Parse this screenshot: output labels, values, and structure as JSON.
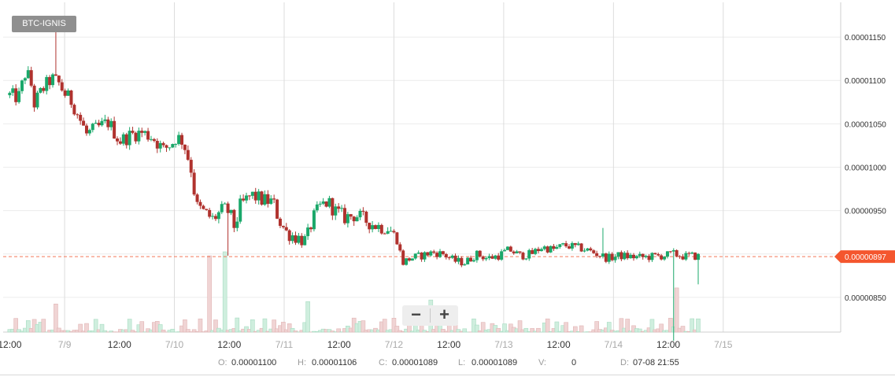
{
  "pair_label": "BTC-IGNIS",
  "zoom": {
    "minus": "−",
    "plus": "+"
  },
  "ohlc": {
    "open_key": "O:",
    "open": "0.00001100",
    "high_key": "H:",
    "high": "0.00001106",
    "close_key": "C:",
    "close": "0.00001089",
    "low_key": "L:",
    "low": "0.00001089",
    "vol_key": "V:",
    "vol": "0",
    "date_key": "D:",
    "date": "07-08 21:55"
  },
  "colors": {
    "up": "#1aa86a",
    "down": "#b0322e",
    "price_line": "#f4795a",
    "grid": "#ececec"
  },
  "chart_data": {
    "type": "candlestick",
    "pair": "BTC-IGNIS",
    "current_price": 8.97e-06,
    "current_price_label": "0.00000897",
    "ylim": [
      8.1e-06,
      1.19e-05
    ],
    "y_ticks": [
      {
        "v": 1.15e-05,
        "label": "0.00001150"
      },
      {
        "v": 1.1e-05,
        "label": "0.00001100"
      },
      {
        "v": 1.05e-05,
        "label": "0.00001050"
      },
      {
        "v": 1e-05,
        "label": "0.00001000"
      },
      {
        "v": 9.5e-06,
        "label": "0.00000950"
      },
      {
        "v": 9e-06,
        "label": "0.00000900"
      },
      {
        "v": 8.5e-06,
        "label": "0.00000850"
      }
    ],
    "x_range": [
      -0.06,
      7.57
    ],
    "x_ticks": [
      {
        "x": 0.0,
        "label": "12:00",
        "grid": false
      },
      {
        "x": 0.5,
        "label": "7/9",
        "grid": true
      },
      {
        "x": 1.0,
        "label": "12:00",
        "grid": false
      },
      {
        "x": 1.5,
        "label": "7/10",
        "grid": true
      },
      {
        "x": 2.0,
        "label": "12:00",
        "grid": false
      },
      {
        "x": 2.5,
        "label": "7/11",
        "grid": true
      },
      {
        "x": 3.0,
        "label": "12:00",
        "grid": false
      },
      {
        "x": 3.5,
        "label": "7/12",
        "grid": true
      },
      {
        "x": 4.0,
        "label": "12:00",
        "grid": false
      },
      {
        "x": 4.5,
        "label": "7/13",
        "grid": true
      },
      {
        "x": 5.0,
        "label": "12:00",
        "grid": false
      },
      {
        "x": 5.5,
        "label": "7/14",
        "grid": true
      },
      {
        "x": 6.0,
        "label": "12:00",
        "grid": false
      },
      {
        "x": 6.5,
        "label": "7/15",
        "grid": true
      }
    ],
    "anchors": [
      [
        0.0,
        10.83
      ],
      [
        0.08,
        10.8
      ],
      [
        0.15,
        11.12
      ],
      [
        0.2,
        10.93
      ],
      [
        0.22,
        10.72
      ],
      [
        0.3,
        10.9
      ],
      [
        0.38,
        11.02
      ],
      [
        0.44,
        10.98
      ],
      [
        0.5,
        10.85
      ],
      [
        0.57,
        10.75
      ],
      [
        0.64,
        10.55
      ],
      [
        0.7,
        10.38
      ],
      [
        0.8,
        10.45
      ],
      [
        0.9,
        10.52
      ],
      [
        1.0,
        10.3
      ],
      [
        1.12,
        10.38
      ],
      [
        1.2,
        10.4
      ],
      [
        1.3,
        10.35
      ],
      [
        1.4,
        10.2
      ],
      [
        1.48,
        10.28
      ],
      [
        1.52,
        10.35
      ],
      [
        1.58,
        10.3
      ],
      [
        1.65,
        10.0
      ],
      [
        1.7,
        9.55
      ],
      [
        1.8,
        9.45
      ],
      [
        1.85,
        9.4
      ],
      [
        1.95,
        9.52
      ],
      [
        2.0,
        9.48
      ],
      [
        2.05,
        9.3
      ],
      [
        2.1,
        9.55
      ],
      [
        2.2,
        9.68
      ],
      [
        2.3,
        9.62
      ],
      [
        2.4,
        9.6
      ],
      [
        2.45,
        9.4
      ],
      [
        2.52,
        9.25
      ],
      [
        2.6,
        9.2
      ],
      [
        2.7,
        9.15
      ],
      [
        2.76,
        9.4
      ],
      [
        2.83,
        9.55
      ],
      [
        2.9,
        9.6
      ],
      [
        2.96,
        9.5
      ],
      [
        3.05,
        9.42
      ],
      [
        3.15,
        9.45
      ],
      [
        3.25,
        9.38
      ],
      [
        3.35,
        9.32
      ],
      [
        3.45,
        9.3
      ],
      [
        3.52,
        9.2
      ],
      [
        3.58,
        8.9
      ],
      [
        3.65,
        8.95
      ],
      [
        3.75,
        8.98
      ],
      [
        3.85,
        9.02
      ],
      [
        3.95,
        9.0
      ],
      [
        4.05,
        8.92
      ],
      [
        4.15,
        8.9
      ],
      [
        4.25,
        9.0
      ],
      [
        4.35,
        8.95
      ],
      [
        4.45,
        8.98
      ],
      [
        4.55,
        9.05
      ],
      [
        4.65,
        8.98
      ],
      [
        4.75,
        9.0
      ],
      [
        4.85,
        9.08
      ],
      [
        4.95,
        9.05
      ],
      [
        5.05,
        9.1
      ],
      [
        5.15,
        9.08
      ],
      [
        5.25,
        9.05
      ],
      [
        5.35,
        9.0
      ],
      [
        5.45,
        8.95
      ],
      [
        5.55,
        8.98
      ],
      [
        5.65,
        8.97
      ],
      [
        5.75,
        8.96
      ],
      [
        5.85,
        8.97
      ],
      [
        5.95,
        8.98
      ],
      [
        6.05,
        9.0
      ],
      [
        6.15,
        8.97
      ],
      [
        6.2,
        8.98
      ],
      [
        6.28,
        8.97
      ]
    ],
    "spikes": [
      {
        "x": 0.43,
        "high": 11.6
      },
      {
        "x": 1.98,
        "low": 8.98
      },
      {
        "x": 5.4,
        "high": 9.3
      },
      {
        "x": 6.05,
        "low": 8.0
      },
      {
        "x": 6.45,
        "low": 8.65
      }
    ],
    "volume_spikes": [
      {
        "x": 1.82,
        "v": 0.95
      },
      {
        "x": 1.97,
        "v": 1.0
      },
      {
        "x": 6.07,
        "v": 0.55
      },
      {
        "x": 0.41,
        "v": 0.35
      },
      {
        "x": 3.83,
        "v": 0.4
      },
      {
        "x": 2.72,
        "v": 0.38
      }
    ]
  }
}
